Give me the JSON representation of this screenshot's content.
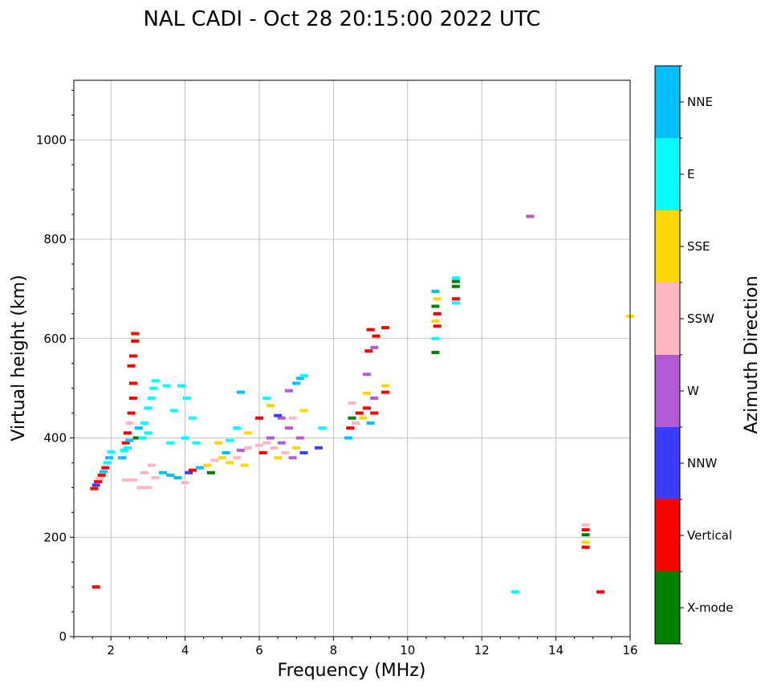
{
  "chart_data": {
    "type": "scatter",
    "title": "NAL CADI - Oct 28 20:15:00 2022 UTC",
    "xlabel": "Frequency (MHz)",
    "ylabel": "Virtual height (km)",
    "xlim": [
      1,
      16
    ],
    "ylim": [
      0,
      1120
    ],
    "xticks": [
      2,
      4,
      6,
      8,
      10,
      12,
      14,
      16
    ],
    "yticks": [
      0,
      200,
      400,
      600,
      800,
      1000
    ],
    "grid": true,
    "colorbar": {
      "label": "Azimuth Direction",
      "categories": [
        "X-mode",
        "Vertical",
        "NNW",
        "W",
        "SSW",
        "SSE",
        "E",
        "NNE"
      ],
      "colors": [
        "#008000",
        "#ff0000",
        "#3c3cff",
        "#b45ad4",
        "#ffb6c1",
        "#ffd700",
        "#00ffff",
        "#00bfff"
      ]
    },
    "points": [
      [
        1.55,
        298,
        "Vertical"
      ],
      [
        1.6,
        305,
        "NNW"
      ],
      [
        1.65,
        312,
        "Vertical"
      ],
      [
        1.7,
        318,
        "SSW"
      ],
      [
        1.75,
        325,
        "Vertical"
      ],
      [
        1.8,
        332,
        "NNE"
      ],
      [
        1.85,
        340,
        "Vertical"
      ],
      [
        1.9,
        350,
        "E"
      ],
      [
        1.95,
        360,
        "NNE"
      ],
      [
        2.0,
        372,
        "E"
      ],
      [
        1.6,
        100,
        "Vertical"
      ],
      [
        2.3,
        360,
        "NNE"
      ],
      [
        2.35,
        375,
        "E"
      ],
      [
        2.4,
        390,
        "Vertical"
      ],
      [
        2.45,
        410,
        "Vertical"
      ],
      [
        2.5,
        430,
        "SSW"
      ],
      [
        2.55,
        450,
        "Vertical"
      ],
      [
        2.6,
        480,
        "Vertical"
      ],
      [
        2.6,
        510,
        "Vertical"
      ],
      [
        2.55,
        545,
        "Vertical"
      ],
      [
        2.6,
        565,
        "Vertical"
      ],
      [
        2.65,
        595,
        "Vertical"
      ],
      [
        2.65,
        610,
        "Vertical"
      ],
      [
        2.7,
        400,
        "X-mode"
      ],
      [
        2.75,
        420,
        "NNE"
      ],
      [
        2.5,
        395,
        "NNE"
      ],
      [
        2.45,
        380,
        "E"
      ],
      [
        2.9,
        430,
        "E"
      ],
      [
        3.0,
        460,
        "E"
      ],
      [
        3.1,
        480,
        "E"
      ],
      [
        3.15,
        500,
        "E"
      ],
      [
        3.2,
        515,
        "E"
      ],
      [
        3.0,
        410,
        "E"
      ],
      [
        2.85,
        400,
        "E"
      ],
      [
        3.5,
        505,
        "E"
      ],
      [
        3.9,
        505,
        "E"
      ],
      [
        4.05,
        480,
        "E"
      ],
      [
        3.7,
        455,
        "E"
      ],
      [
        4.2,
        440,
        "E"
      ],
      [
        4.0,
        400,
        "E"
      ],
      [
        4.3,
        390,
        "E"
      ],
      [
        3.6,
        390,
        "E"
      ],
      [
        2.4,
        315,
        "SSW"
      ],
      [
        2.6,
        315,
        "SSW"
      ],
      [
        2.8,
        300,
        "SSW"
      ],
      [
        3.0,
        300,
        "SSW"
      ],
      [
        3.2,
        320,
        "SSW"
      ],
      [
        2.9,
        330,
        "SSW"
      ],
      [
        3.1,
        345,
        "SSW"
      ],
      [
        3.4,
        330,
        "NNE"
      ],
      [
        3.6,
        325,
        "NNE"
      ],
      [
        3.8,
        320,
        "NNE"
      ],
      [
        4.0,
        310,
        "SSW"
      ],
      [
        4.1,
        330,
        "NNW"
      ],
      [
        4.2,
        335,
        "Vertical"
      ],
      [
        4.4,
        340,
        "NNE"
      ],
      [
        4.6,
        345,
        "SSE"
      ],
      [
        4.7,
        330,
        "X-mode"
      ],
      [
        4.8,
        355,
        "SSW"
      ],
      [
        5.0,
        360,
        "SSE"
      ],
      [
        5.1,
        370,
        "NNE"
      ],
      [
        5.2,
        350,
        "SSE"
      ],
      [
        5.4,
        360,
        "SSW"
      ],
      [
        5.5,
        375,
        "W"
      ],
      [
        5.6,
        345,
        "SSE"
      ],
      [
        5.7,
        380,
        "SSW"
      ],
      [
        4.9,
        390,
        "SSE"
      ],
      [
        5.2,
        395,
        "E"
      ],
      [
        5.4,
        420,
        "E"
      ],
      [
        5.7,
        410,
        "SSE"
      ],
      [
        6.0,
        385,
        "SSW"
      ],
      [
        6.1,
        370,
        "Vertical"
      ],
      [
        6.2,
        390,
        "SSW"
      ],
      [
        6.3,
        400,
        "W"
      ],
      [
        6.4,
        380,
        "SSW"
      ],
      [
        6.5,
        360,
        "SSE"
      ],
      [
        6.6,
        390,
        "W"
      ],
      [
        6.7,
        370,
        "SSW"
      ],
      [
        6.8,
        420,
        "W"
      ],
      [
        6.9,
        360,
        "W"
      ],
      [
        7.0,
        380,
        "SSE"
      ],
      [
        7.1,
        400,
        "W"
      ],
      [
        7.2,
        370,
        "NNW"
      ],
      [
        6.6,
        440,
        "W"
      ],
      [
        6.9,
        440,
        "SSW"
      ],
      [
        7.2,
        455,
        "SSE"
      ],
      [
        7.6,
        380,
        "NNW"
      ],
      [
        7.7,
        420,
        "E"
      ],
      [
        6.2,
        480,
        "E"
      ],
      [
        6.3,
        465,
        "SSE"
      ],
      [
        6.5,
        445,
        "NNW"
      ],
      [
        6.8,
        495,
        "W"
      ],
      [
        7.0,
        510,
        "NNE"
      ],
      [
        7.1,
        520,
        "NNE"
      ],
      [
        7.2,
        525,
        "E"
      ],
      [
        5.5,
        492,
        "NNE"
      ],
      [
        6.0,
        440,
        "Vertical"
      ],
      [
        8.4,
        400,
        "NNE"
      ],
      [
        8.45,
        420,
        "Vertical"
      ],
      [
        8.5,
        440,
        "X-mode"
      ],
      [
        8.6,
        430,
        "SSW"
      ],
      [
        8.7,
        450,
        "Vertical"
      ],
      [
        8.8,
        440,
        "SSE"
      ],
      [
        8.9,
        460,
        "Vertical"
      ],
      [
        9.0,
        430,
        "NNE"
      ],
      [
        9.1,
        450,
        "Vertical"
      ],
      [
        9.1,
        480,
        "W"
      ],
      [
        8.9,
        528,
        "W"
      ],
      [
        8.95,
        575,
        "Vertical"
      ],
      [
        9.0,
        618,
        "Vertical"
      ],
      [
        9.15,
        605,
        "Vertical"
      ],
      [
        9.1,
        582,
        "W"
      ],
      [
        9.4,
        622,
        "Vertical"
      ],
      [
        9.4,
        505,
        "SSE"
      ],
      [
        9.4,
        492,
        "Vertical"
      ],
      [
        8.5,
        470,
        "SSW"
      ],
      [
        8.9,
        490,
        "SSE"
      ],
      [
        10.75,
        695,
        "NNE"
      ],
      [
        10.8,
        680,
        "SSE"
      ],
      [
        10.75,
        665,
        "X-mode"
      ],
      [
        10.8,
        650,
        "Vertical"
      ],
      [
        10.75,
        635,
        "SSE"
      ],
      [
        10.8,
        625,
        "Vertical"
      ],
      [
        10.75,
        600,
        "E"
      ],
      [
        10.75,
        572,
        "X-mode"
      ],
      [
        11.3,
        722,
        "E"
      ],
      [
        11.3,
        715,
        "X-mode"
      ],
      [
        11.3,
        705,
        "X-mode"
      ],
      [
        11.3,
        680,
        "Vertical"
      ],
      [
        11.3,
        672,
        "E"
      ],
      [
        13.3,
        846,
        "W"
      ],
      [
        14.8,
        225,
        "SSW"
      ],
      [
        14.8,
        215,
        "Vertical"
      ],
      [
        14.8,
        205,
        "X-mode"
      ],
      [
        14.8,
        190,
        "SSE"
      ],
      [
        14.8,
        180,
        "Vertical"
      ],
      [
        12.9,
        90,
        "E"
      ],
      [
        15.2,
        90,
        "Vertical"
      ],
      [
        16.0,
        645,
        "SSE"
      ]
    ]
  }
}
